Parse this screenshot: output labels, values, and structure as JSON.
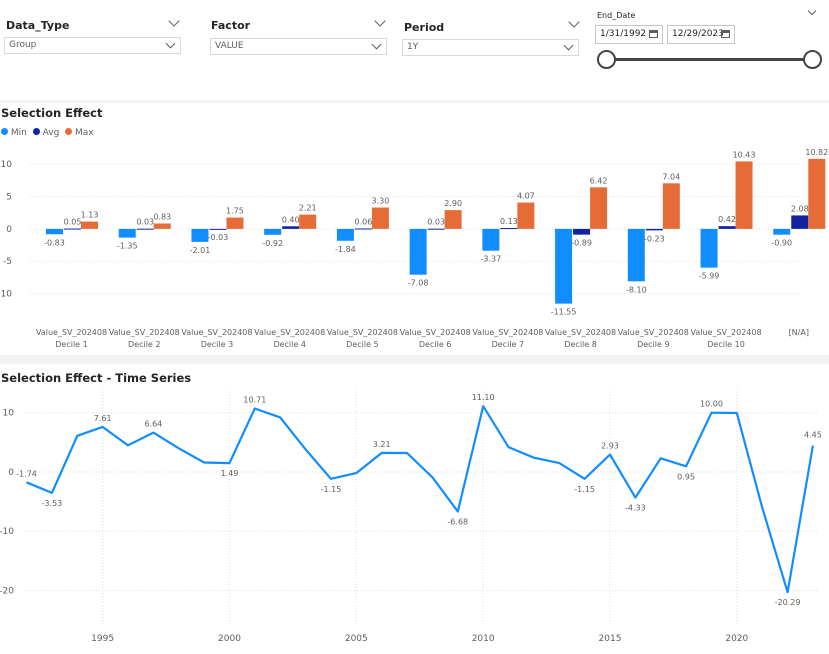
{
  "slicers": {
    "data_type": {
      "label": "Data_Type",
      "value": "Group"
    },
    "factor": {
      "label": "Factor",
      "value": "VALUE"
    },
    "period": {
      "label": "Period",
      "value": "1Y"
    },
    "end_date": {
      "label": "End_Date",
      "start": "1/31/1992",
      "end": "12/29/2023"
    }
  },
  "colors": {
    "min": "#118dff",
    "avg": "#12239e",
    "max": "#e66c37",
    "line": "#118dff"
  },
  "bar_chart": {
    "title": "Selection Effect",
    "legend": [
      "Min",
      "Avg",
      "Max"
    ],
    "chart_data": {
      "type": "bar",
      "categories": [
        [
          "Value_SV_202408",
          "Decile 1"
        ],
        [
          "Value_SV_202408",
          "Decile 2"
        ],
        [
          "Value_SV_202408",
          "Decile 3"
        ],
        [
          "Value_SV_202408",
          "Decile 4"
        ],
        [
          "Value_SV_202408",
          "Decile 5"
        ],
        [
          "Value_SV_202408",
          "Decile 6"
        ],
        [
          "Value_SV_202408",
          "Decile 7"
        ],
        [
          "Value_SV_202408",
          "Decile 8"
        ],
        [
          "Value_SV_202408",
          "Decile 9"
        ],
        [
          "Value_SV_202408",
          "Decile 10"
        ],
        [
          "[N/A]",
          ""
        ]
      ],
      "series": [
        {
          "name": "Min",
          "values": [
            -0.83,
            -1.35,
            -2.01,
            -0.92,
            -1.84,
            -7.08,
            -3.37,
            -11.55,
            -8.1,
            -5.99,
            -0.9
          ]
        },
        {
          "name": "Avg",
          "values": [
            0.05,
            0.03,
            -0.03,
            0.4,
            0.06,
            0.03,
            0.13,
            -0.89,
            -0.23,
            0.42,
            2.08
          ]
        },
        {
          "name": "Max",
          "values": [
            1.13,
            0.83,
            1.75,
            2.21,
            3.3,
            2.9,
            4.07,
            6.42,
            7.04,
            10.43,
            10.82
          ]
        }
      ],
      "labels": {
        "Min": [
          "-0.83",
          "-1.35",
          "-2.01",
          "-0.92",
          "-1.84",
          "-7.08",
          "-3.37",
          "-11.55",
          "-8.10",
          "-5.99",
          "-0.90"
        ],
        "Avg": [
          "0.05",
          "0.03",
          "-0.03",
          "0.40",
          "0.06",
          "0.03",
          "0.13",
          "-0.89",
          "-0.23",
          "0.42",
          "2.08"
        ],
        "Max": [
          "1.13",
          "0.83",
          "1.75",
          "2.21",
          "3.30",
          "2.90",
          "4.07",
          "6.42",
          "7.04",
          "10.43",
          "10.82"
        ]
      },
      "yticks": [
        "10",
        "5",
        "0",
        "-5",
        "-10"
      ],
      "ylim": [
        -13,
        12.5
      ],
      "legend_position": "top-left",
      "grid": true
    }
  },
  "line_chart": {
    "title": "Selection Effect - Time Series",
    "chart_data": {
      "type": "line",
      "x": [
        1992,
        1993,
        1994,
        1995,
        1996,
        1997,
        1998,
        1999,
        2000,
        2001,
        2002,
        2003,
        2004,
        2005,
        2006,
        2007,
        2008,
        2009,
        2010,
        2011,
        2012,
        2013,
        2014,
        2015,
        2016,
        2017,
        2018,
        2019,
        2020,
        2021,
        2022,
        2023
      ],
      "y": [
        -1.74,
        -3.53,
        6.1,
        7.61,
        4.5,
        6.64,
        4.0,
        1.6,
        1.49,
        10.71,
        9.2,
        3.8,
        -1.15,
        -0.2,
        3.21,
        3.2,
        -0.9,
        -6.68,
        11.1,
        4.2,
        2.4,
        1.5,
        -1.15,
        2.93,
        -4.33,
        2.3,
        0.95,
        10.0,
        9.95,
        -6.0,
        -20.29,
        4.45
      ],
      "point_labels": [
        {
          "x": 1992,
          "text": "-1.74"
        },
        {
          "x": 1993,
          "text": "-3.53"
        },
        {
          "x": 1995,
          "text": "7.61"
        },
        {
          "x": 1997,
          "text": "6.64"
        },
        {
          "x": 2000,
          "text": "1.49"
        },
        {
          "x": 2001,
          "text": "10.71"
        },
        {
          "x": 2004,
          "text": "-1.15"
        },
        {
          "x": 2006,
          "text": "3.21"
        },
        {
          "x": 2009,
          "text": "-6.68"
        },
        {
          "x": 2010,
          "text": "11.10"
        },
        {
          "x": 2014,
          "text": "-1.15"
        },
        {
          "x": 2015,
          "text": "2.93"
        },
        {
          "x": 2016,
          "text": "-4.33"
        },
        {
          "x": 2018,
          "text": "0.95"
        },
        {
          "x": 2019,
          "text": "10.00"
        },
        {
          "x": 2022,
          "text": "-20.29"
        },
        {
          "x": 2023,
          "text": "4.45"
        }
      ],
      "xticks": [
        1995,
        2000,
        2005,
        2010,
        2015,
        2020
      ],
      "yticks": [
        10,
        0,
        -10,
        -20
      ],
      "xlim": [
        1991.9,
        2023.2
      ],
      "ylim": [
        -26,
        14
      ],
      "grid": true
    }
  }
}
